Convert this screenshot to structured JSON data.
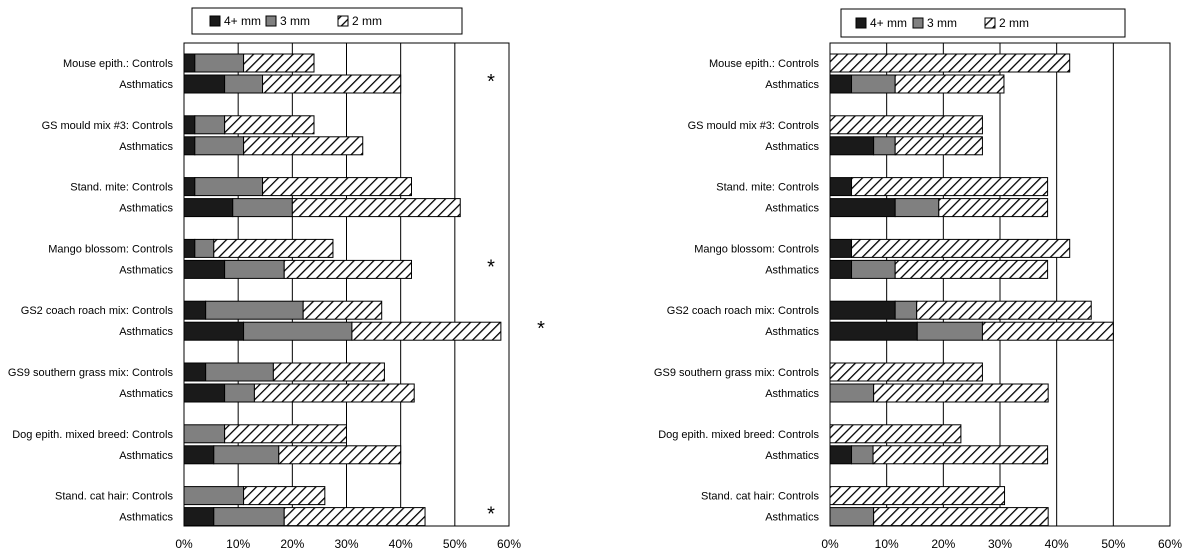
{
  "chart_data": [
    {
      "type": "bar",
      "orientation": "horizontal",
      "stacked": true,
      "legend": {
        "placement": "top",
        "entries": [
          {
            "name": "4+ mm",
            "color": "#1a1a1a",
            "pattern": "solid"
          },
          {
            "name": "3 mm",
            "color": "#808080",
            "pattern": "solid"
          },
          {
            "name": "2 mm",
            "color": "#ffffff",
            "pattern": "diagonal-hatch"
          }
        ]
      },
      "xlim": [
        0,
        60
      ],
      "xticks": [
        "0%",
        "10%",
        "20%",
        "30%",
        "40%",
        "50%",
        "60%"
      ],
      "grid": true,
      "groups": [
        {
          "controls_label": "Mouse epith.: Controls",
          "asthmatics_label": "Asthmatics",
          "controls": [
            2,
            9,
            13
          ],
          "asthmatics": [
            7.5,
            7,
            25.5
          ],
          "star": "*"
        },
        {
          "controls_label": "GS mould mix #3: Controls",
          "asthmatics_label": "Asthmatics",
          "controls": [
            2,
            5.5,
            16.5
          ],
          "asthmatics": [
            2,
            9,
            22
          ],
          "star": ""
        },
        {
          "controls_label": "Stand. mite: Controls",
          "asthmatics_label": "Asthmatics",
          "controls": [
            2,
            12.5,
            27.5
          ],
          "asthmatics": [
            9,
            11,
            31
          ],
          "star": ""
        },
        {
          "controls_label": "Mango blossom: Controls",
          "asthmatics_label": "Asthmatics",
          "controls": [
            2,
            3.5,
            22
          ],
          "asthmatics": [
            7.5,
            11,
            23.5
          ],
          "star": "*"
        },
        {
          "controls_label": "GS2 coach roach mix: Controls",
          "asthmatics_label": "Asthmatics",
          "controls": [
            4,
            18,
            14.5
          ],
          "asthmatics": [
            11,
            20,
            27.5
          ],
          "star": "*"
        },
        {
          "controls_label": "GS9 southern grass mix: Controls",
          "asthmatics_label": "Asthmatics",
          "controls": [
            4,
            12.5,
            20.5
          ],
          "asthmatics": [
            7.5,
            5.5,
            29.5
          ],
          "star": ""
        },
        {
          "controls_label": "Dog epith. mixed breed: Controls",
          "asthmatics_label": "Asthmatics",
          "controls": [
            0,
            7.5,
            22.5
          ],
          "asthmatics": [
            5.5,
            12,
            22.5
          ],
          "star": ""
        },
        {
          "controls_label": "Stand. cat hair: Controls",
          "asthmatics_label": "Asthmatics",
          "controls": [
            0,
            11,
            15
          ],
          "asthmatics": [
            5.5,
            13,
            26
          ],
          "star": "*"
        }
      ]
    },
    {
      "type": "bar",
      "orientation": "horizontal",
      "stacked": true,
      "legend": {
        "placement": "top",
        "entries": [
          {
            "name": "4+ mm",
            "color": "#1a1a1a",
            "pattern": "solid"
          },
          {
            "name": "3 mm",
            "color": "#808080",
            "pattern": "solid"
          },
          {
            "name": "2 mm",
            "color": "#ffffff",
            "pattern": "diagonal-hatch"
          }
        ]
      },
      "xlim": [
        0,
        60
      ],
      "xticks": [
        "0%",
        "10%",
        "20%",
        "30%",
        "40%",
        "50%",
        "60%"
      ],
      "grid": true,
      "groups": [
        {
          "controls_label": "Mouse epith.: Controls",
          "asthmatics_label": "Asthmatics",
          "controls": [
            0,
            0,
            42.3
          ],
          "asthmatics": [
            3.8,
            7.7,
            19.2
          ],
          "star": ""
        },
        {
          "controls_label": "GS mould mix #3: Controls",
          "asthmatics_label": "Asthmatics",
          "controls": [
            0,
            0,
            26.9
          ],
          "asthmatics": [
            7.7,
            3.8,
            15.4
          ],
          "star": ""
        },
        {
          "controls_label": "Stand. mite: Controls",
          "asthmatics_label": "Asthmatics",
          "controls": [
            3.8,
            0,
            34.6
          ],
          "asthmatics": [
            11.5,
            7.7,
            19.2
          ],
          "star": ""
        },
        {
          "controls_label": "Mango blossom: Controls",
          "asthmatics_label": "Asthmatics",
          "controls": [
            3.8,
            0,
            38.5
          ],
          "asthmatics": [
            3.8,
            7.7,
            26.9
          ],
          "star": ""
        },
        {
          "controls_label": "GS2 coach roach mix: Controls",
          "asthmatics_label": "Asthmatics",
          "controls": [
            11.5,
            3.8,
            30.8
          ],
          "asthmatics": [
            15.4,
            11.5,
            23.1
          ],
          "star": ""
        },
        {
          "controls_label": "GS9 southern grass mix: Controls",
          "asthmatics_label": "Asthmatics",
          "controls": [
            0,
            0,
            26.9
          ],
          "asthmatics": [
            0,
            7.7,
            30.8
          ],
          "star": ""
        },
        {
          "controls_label": "Dog epith. mixed breed: Controls",
          "asthmatics_label": "Asthmatics",
          "controls": [
            0,
            0,
            23.1
          ],
          "asthmatics": [
            3.8,
            3.8,
            30.8
          ],
          "star": ""
        },
        {
          "controls_label": "Stand. cat hair: Controls",
          "asthmatics_label": "Asthmatics",
          "controls": [
            0,
            0,
            30.8
          ],
          "asthmatics": [
            0,
            7.7,
            30.8
          ],
          "star": ""
        }
      ]
    }
  ]
}
